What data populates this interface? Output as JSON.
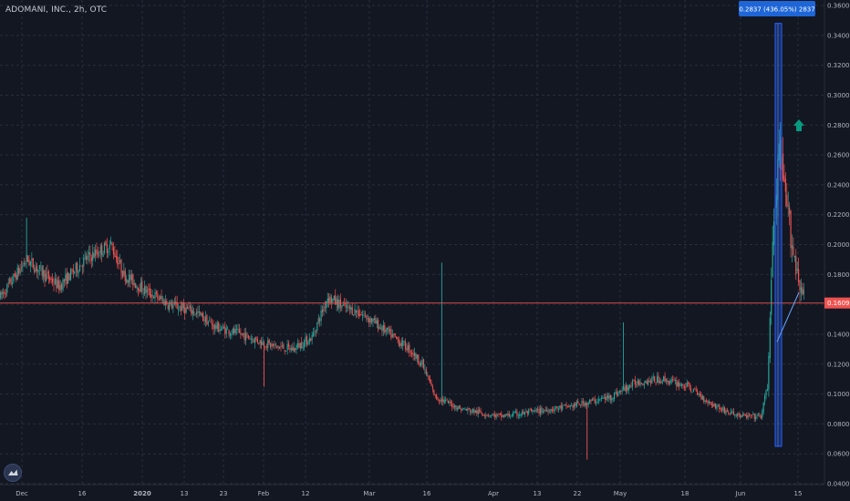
{
  "header": {
    "symbol_label": "ADOMANI, INC., 2h, OTC"
  },
  "measure_label": "0.2837 (436.05%) 2837",
  "last_price_label": "0.1609",
  "colors": {
    "background": "#131722",
    "up": "#26a69a",
    "down": "#ef5350",
    "grid": "#2a2e39",
    "price_line": "#ef5350",
    "measure": "#2962ff",
    "arrow": "#089981"
  },
  "chart_data": {
    "type": "candlestick",
    "title": "ADOMANI, INC., 2h, OTC",
    "ylim": [
      0.04,
      0.36
    ],
    "y_ticks": [
      0.04,
      0.06,
      0.08,
      0.1,
      0.12,
      0.14,
      0.16,
      0.18,
      0.2,
      0.22,
      0.24,
      0.26,
      0.28,
      0.3,
      0.32,
      0.34,
      0.36
    ],
    "y_tick_labels": [
      "0.0400",
      "0.0600",
      "0.0800",
      "0.1000",
      "0.1200",
      "0.1400",
      "0.1600",
      "0.1800",
      "0.2000",
      "0.2200",
      "0.2400",
      "0.2600",
      "0.2800",
      "0.3000",
      "0.3200",
      "0.3400",
      "0.3600"
    ],
    "x_ticks": [
      {
        "label": "Dec",
        "bold": false
      },
      {
        "label": "16",
        "bold": false
      },
      {
        "label": "2020",
        "bold": true
      },
      {
        "label": "13",
        "bold": false
      },
      {
        "label": "23",
        "bold": false
      },
      {
        "label": "Feb",
        "bold": false
      },
      {
        "label": "12",
        "bold": false
      },
      {
        "label": "Mar",
        "bold": false
      },
      {
        "label": "16",
        "bold": false
      },
      {
        "label": "Apr",
        "bold": false
      },
      {
        "label": "13",
        "bold": false
      },
      {
        "label": "22",
        "bold": false
      },
      {
        "label": "May",
        "bold": false
      },
      {
        "label": "18",
        "bold": false
      },
      {
        "label": "Jun",
        "bold": false
      },
      {
        "label": "15",
        "bold": false
      }
    ],
    "grid": true,
    "last_price": 0.1609,
    "path_anchors": [
      [
        0,
        0.165
      ],
      [
        20,
        0.19
      ],
      [
        45,
        0.172
      ],
      [
        65,
        0.19
      ],
      [
        85,
        0.2
      ],
      [
        95,
        0.18
      ],
      [
        110,
        0.17
      ],
      [
        130,
        0.16
      ],
      [
        150,
        0.155
      ],
      [
        165,
        0.145
      ],
      [
        185,
        0.14
      ],
      [
        210,
        0.132
      ],
      [
        225,
        0.13
      ],
      [
        240,
        0.138
      ],
      [
        252,
        0.165
      ],
      [
        265,
        0.158
      ],
      [
        275,
        0.155
      ],
      [
        285,
        0.15
      ],
      [
        300,
        0.14
      ],
      [
        315,
        0.13
      ],
      [
        325,
        0.12
      ],
      [
        335,
        0.098
      ],
      [
        355,
        0.09
      ],
      [
        385,
        0.085
      ],
      [
        410,
        0.088
      ],
      [
        440,
        0.092
      ],
      [
        470,
        0.098
      ],
      [
        490,
        0.108
      ],
      [
        510,
        0.11
      ],
      [
        530,
        0.105
      ],
      [
        545,
        0.095
      ],
      [
        560,
        0.088
      ],
      [
        572,
        0.085
      ],
      [
        586,
        0.085
      ],
      [
        591,
        0.105
      ],
      [
        595,
        0.2
      ],
      [
        600,
        0.26
      ],
      [
        605,
        0.23
      ],
      [
        612,
        0.19
      ],
      [
        620,
        0.16
      ]
    ],
    "total_bars": 620,
    "measure_box": {
      "from": 0.065,
      "to": 0.348
    }
  }
}
